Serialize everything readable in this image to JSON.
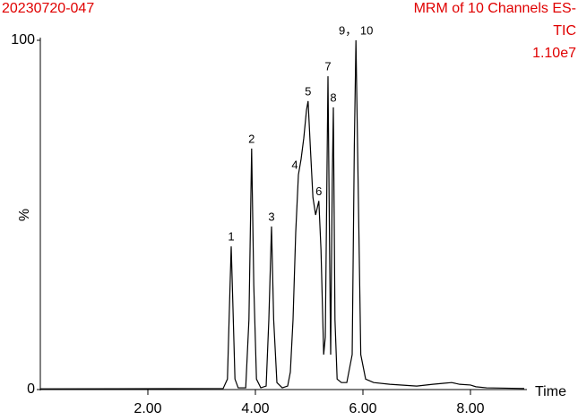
{
  "chart_data": {
    "type": "line",
    "title": "20230720-047",
    "subtitle": [
      "MRM of 10 Channels ES-",
      "TIC",
      "1.10e7"
    ],
    "x_label": "Time",
    "y_label": "%",
    "color": "#000000",
    "text_color": "#e00000",
    "xlim": [
      0,
      9
    ],
    "ylim": [
      0,
      100
    ],
    "xticks": [
      {
        "value": 2,
        "label": "2.00"
      },
      {
        "value": 4,
        "label": "4.00"
      },
      {
        "value": 6,
        "label": "6.00"
      },
      {
        "value": 8,
        "label": "8.00"
      }
    ],
    "yticks": [
      0,
      100
    ],
    "x": [
      0.0,
      3.4,
      3.48,
      3.52,
      3.55,
      3.58,
      3.62,
      3.68,
      3.82,
      3.88,
      3.93,
      3.97,
      4.02,
      4.1,
      4.2,
      4.25,
      4.3,
      4.34,
      4.4,
      4.5,
      4.6,
      4.65,
      4.7,
      4.75,
      4.8,
      4.85,
      4.9,
      4.95,
      4.98,
      5.02,
      5.07,
      5.12,
      5.15,
      5.18,
      5.22,
      5.27,
      5.3,
      5.33,
      5.35,
      5.38,
      5.4,
      5.43,
      5.45,
      5.48,
      5.52,
      5.6,
      5.7,
      5.8,
      5.84,
      5.87,
      5.91,
      5.96,
      6.05,
      6.2,
      6.5,
      7.0,
      7.3,
      7.5,
      7.65,
      7.8,
      8.0,
      8.1,
      8.3,
      9.0
    ],
    "values": [
      0.2,
      0.3,
      3,
      25,
      41,
      25,
      3,
      0.5,
      0.5,
      20,
      69,
      30,
      3,
      0.5,
      1,
      20,
      46.7,
      20,
      2,
      0.5,
      1,
      5,
      20,
      45,
      61.5,
      66,
      72,
      80,
      82.6,
      70,
      55,
      50,
      52,
      54,
      40,
      10,
      15,
      60,
      89.7,
      40,
      10,
      60,
      80.8,
      20,
      3,
      2,
      2,
      10,
      70,
      100,
      60,
      10,
      3,
      2,
      1.5,
      1,
      1.5,
      1.8,
      2,
      1.5,
      1.3,
      0.8,
      0.5,
      0.3
    ],
    "peak_labels": [
      {
        "text": "1",
        "x": 3.55,
        "y": 41
      },
      {
        "text": "2",
        "x": 3.93,
        "y": 69
      },
      {
        "text": "3",
        "x": 4.3,
        "y": 46.7
      },
      {
        "text": "4",
        "x": 4.8,
        "y": 61.5
      },
      {
        "text": "5",
        "x": 4.98,
        "y": 82.6
      },
      {
        "text": "6",
        "x": 5.18,
        "y": 54
      },
      {
        "text": "7",
        "x": 5.35,
        "y": 89.7
      },
      {
        "text": "8",
        "x": 5.45,
        "y": 80.8
      },
      {
        "text": "9， 10",
        "x": 5.87,
        "y": 100
      }
    ]
  }
}
